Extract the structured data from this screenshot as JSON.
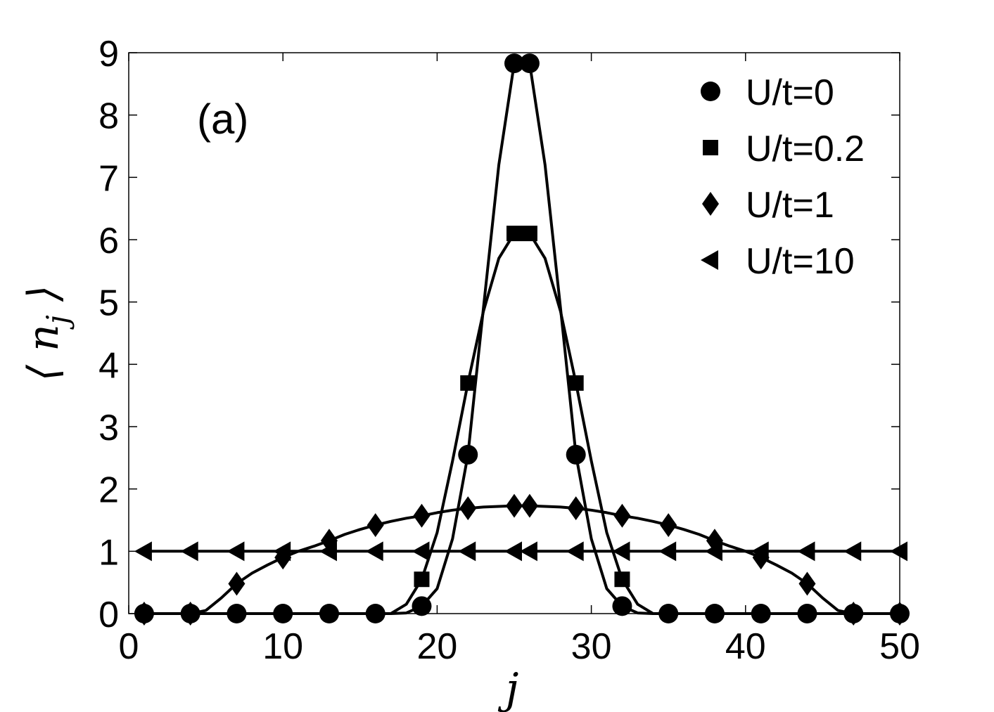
{
  "chart_data": {
    "type": "line",
    "panel_label": "(a)",
    "xlabel": "j",
    "ylabel": "⟨ n_j ⟩",
    "xlim": [
      0,
      50
    ],
    "ylim": [
      0,
      9
    ],
    "xticks": [
      0,
      10,
      20,
      30,
      40,
      50
    ],
    "yticks": [
      0,
      1,
      2,
      3,
      4,
      5,
      6,
      7,
      8,
      9
    ],
    "grid": false,
    "legend_position": "top-right",
    "line_color": "#000000",
    "series": [
      {
        "name": "U/t=0",
        "marker": "circle",
        "curve": {
          "x": [
            1,
            2,
            3,
            4,
            5,
            6,
            7,
            8,
            9,
            10,
            11,
            12,
            13,
            14,
            15,
            16,
            17,
            18,
            19,
            20,
            21,
            22,
            23,
            24,
            25,
            26,
            27,
            28,
            29,
            30,
            31,
            32,
            33,
            34,
            35,
            36,
            37,
            38,
            39,
            40,
            41,
            42,
            43,
            44,
            45,
            46,
            47,
            48,
            49,
            50
          ],
          "y": [
            0,
            0,
            0,
            0,
            0,
            0,
            0,
            0,
            0,
            0,
            0,
            0,
            0,
            0,
            0,
            0,
            0,
            0.01,
            0.12,
            0.4,
            1.2,
            2.55,
            4.9,
            7.2,
            8.83,
            8.83,
            7.2,
            4.9,
            2.55,
            1.2,
            0.4,
            0.12,
            0.01,
            0,
            0,
            0,
            0,
            0,
            0,
            0,
            0,
            0,
            0,
            0,
            0,
            0,
            0,
            0,
            0,
            0
          ]
        },
        "markers": {
          "x": [
            1,
            4,
            7,
            10,
            13,
            16,
            19,
            22,
            25,
            26,
            29,
            32,
            35,
            38,
            41,
            44,
            47,
            50
          ],
          "y": [
            0,
            0,
            0,
            0,
            0,
            0,
            0.12,
            2.55,
            8.83,
            8.83,
            2.55,
            0.12,
            0,
            0,
            0,
            0,
            0,
            0
          ]
        }
      },
      {
        "name": "U/t=0.2",
        "marker": "square",
        "curve": {
          "x": [
            1,
            2,
            3,
            4,
            5,
            6,
            7,
            8,
            9,
            10,
            11,
            12,
            13,
            14,
            15,
            16,
            17,
            18,
            19,
            20,
            21,
            22,
            23,
            24,
            25,
            26,
            27,
            28,
            29,
            30,
            31,
            32,
            33,
            34,
            35,
            36,
            37,
            38,
            39,
            40,
            41,
            42,
            43,
            44,
            45,
            46,
            47,
            48,
            49,
            50
          ],
          "y": [
            0,
            0,
            0,
            0,
            0,
            0,
            0,
            0,
            0,
            0,
            0,
            0,
            0,
            0,
            0,
            0,
            0,
            0.15,
            0.55,
            1.3,
            2.45,
            3.7,
            4.85,
            5.7,
            6.1,
            6.1,
            5.7,
            4.85,
            3.7,
            2.45,
            1.3,
            0.55,
            0.15,
            0,
            0,
            0,
            0,
            0,
            0,
            0,
            0,
            0,
            0,
            0,
            0,
            0,
            0,
            0,
            0,
            0
          ]
        },
        "markers": {
          "x": [
            19,
            22,
            25,
            26,
            29,
            32
          ],
          "y": [
            0.55,
            3.7,
            6.1,
            6.1,
            3.7,
            0.55
          ]
        }
      },
      {
        "name": "U/t=1",
        "marker": "diamond",
        "curve": {
          "x": [
            1,
            2,
            3,
            4,
            5,
            6,
            7,
            8,
            9,
            10,
            11,
            12,
            13,
            14,
            15,
            16,
            17,
            18,
            19,
            20,
            21,
            22,
            23,
            24,
            25,
            26,
            27,
            28,
            29,
            30,
            31,
            32,
            33,
            34,
            35,
            36,
            37,
            38,
            39,
            40,
            41,
            42,
            43,
            44,
            45,
            46,
            47,
            48,
            49,
            50
          ],
          "y": [
            0,
            0,
            0,
            0,
            0.05,
            0.25,
            0.48,
            0.65,
            0.78,
            0.9,
            1.0,
            1.08,
            1.17,
            1.27,
            1.35,
            1.42,
            1.48,
            1.53,
            1.57,
            1.62,
            1.66,
            1.69,
            1.71,
            1.72,
            1.73,
            1.73,
            1.72,
            1.71,
            1.69,
            1.66,
            1.62,
            1.57,
            1.53,
            1.48,
            1.42,
            1.35,
            1.27,
            1.17,
            1.08,
            1.0,
            0.9,
            0.78,
            0.65,
            0.48,
            0.25,
            0.05,
            0,
            0,
            0,
            0
          ]
        },
        "markers": {
          "x": [
            1,
            4,
            7,
            10,
            13,
            16,
            19,
            22,
            25,
            26,
            29,
            32,
            35,
            38,
            41,
            44,
            47,
            50
          ],
          "y": [
            0,
            0,
            0.48,
            0.9,
            1.17,
            1.42,
            1.57,
            1.69,
            1.73,
            1.73,
            1.69,
            1.57,
            1.42,
            1.17,
            0.9,
            0.48,
            0,
            0
          ]
        }
      },
      {
        "name": "U/t=10",
        "marker": "triangle-left",
        "curve": {
          "x": [
            1,
            50
          ],
          "y": [
            1,
            1
          ]
        },
        "markers": {
          "x": [
            1,
            4,
            7,
            10,
            13,
            16,
            19,
            22,
            25,
            26,
            29,
            32,
            35,
            38,
            41,
            44,
            47,
            50
          ],
          "y": [
            1,
            1,
            1,
            1,
            1,
            1,
            1,
            1,
            1,
            1,
            1,
            1,
            1,
            1,
            1,
            1,
            1,
            1
          ]
        }
      }
    ]
  }
}
